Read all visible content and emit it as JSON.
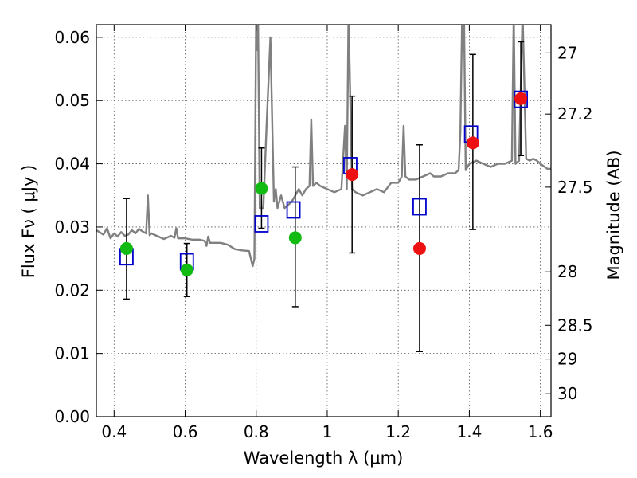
{
  "chart_data": {
    "type": "scatter",
    "xlabel": "Wavelength  λ (μm)",
    "ylabel_left": "Flux  Fν  ( μJy )",
    "ylabel_right": "Magnitude (AB)",
    "xlim": [
      0.35,
      1.63
    ],
    "ylim": [
      0.0,
      0.062
    ],
    "grid": true,
    "x_ticks": [
      0.4,
      0.6,
      0.8,
      1.0,
      1.2,
      1.4,
      1.6
    ],
    "x_tick_labels": [
      "0.4",
      "0.6",
      "0.8",
      "1",
      "1.2",
      "1.4",
      "1.6"
    ],
    "y_ticks": [
      0.0,
      0.01,
      0.02,
      0.03,
      0.04,
      0.05,
      0.06
    ],
    "y_tick_labels": [
      "0.00",
      "0.01",
      "0.02",
      "0.03",
      "0.04",
      "0.05",
      "0.06"
    ],
    "right_axis_magnitudes": [
      27,
      27.2,
      27.5,
      28,
      28.5,
      29,
      30
    ],
    "right_axis_labels": [
      "27",
      "27.2",
      "27.5",
      "28",
      "28.5",
      "29",
      "30"
    ],
    "colors": {
      "model_line": "#808080",
      "model_photometry": "#0000cc",
      "detections_green": "#11bb11",
      "detections_red": "#ee1111",
      "errorbar": "#000000",
      "grid": "#555555"
    },
    "series": [
      {
        "name": "model-spectrum",
        "kind": "line",
        "x": [
          0.35,
          0.37,
          0.38,
          0.39,
          0.4,
          0.41,
          0.42,
          0.43,
          0.44,
          0.45,
          0.46,
          0.47,
          0.48,
          0.49,
          0.495,
          0.5,
          0.505,
          0.52,
          0.54,
          0.56,
          0.57,
          0.575,
          0.58,
          0.6,
          0.62,
          0.64,
          0.655,
          0.66,
          0.665,
          0.67,
          0.7,
          0.72,
          0.74,
          0.76,
          0.78,
          0.79,
          0.795,
          0.8,
          0.802,
          0.805,
          0.81,
          0.82,
          0.83,
          0.84,
          0.85,
          0.855,
          0.86,
          0.87,
          0.88,
          0.89,
          0.9,
          0.91,
          0.92,
          0.93,
          0.94,
          0.95,
          0.955,
          0.96,
          0.97,
          0.98,
          1.0,
          1.02,
          1.04,
          1.05,
          1.055,
          1.06,
          1.07,
          1.08,
          1.1,
          1.12,
          1.14,
          1.16,
          1.18,
          1.2,
          1.21,
          1.215,
          1.22,
          1.23,
          1.25,
          1.27,
          1.29,
          1.3,
          1.32,
          1.34,
          1.36,
          1.37,
          1.375,
          1.38,
          1.385,
          1.39,
          1.4,
          1.42,
          1.44,
          1.46,
          1.48,
          1.5,
          1.52,
          1.525,
          1.53,
          1.54,
          1.55,
          1.56,
          1.57,
          1.58,
          1.59,
          1.6,
          1.62,
          1.63
        ],
        "y": [
          0.0295,
          0.0288,
          0.0298,
          0.0282,
          0.029,
          0.0285,
          0.0292,
          0.0286,
          0.0288,
          0.0295,
          0.029,
          0.0297,
          0.0293,
          0.029,
          0.035,
          0.0287,
          0.029,
          0.0286,
          0.0281,
          0.0286,
          0.0283,
          0.0298,
          0.0282,
          0.0282,
          0.028,
          0.028,
          0.0278,
          0.027,
          0.0285,
          0.0275,
          0.0275,
          0.0272,
          0.0265,
          0.0263,
          0.0262,
          0.0238,
          0.025,
          0.064,
          0.058,
          0.064,
          0.033,
          0.033,
          0.047,
          0.06,
          0.034,
          0.036,
          0.033,
          0.035,
          0.033,
          0.0335,
          0.034,
          0.035,
          0.036,
          0.035,
          0.036,
          0.0365,
          0.047,
          0.0365,
          0.037,
          0.0365,
          0.036,
          0.0355,
          0.036,
          0.046,
          0.036,
          0.064,
          0.036,
          0.0355,
          0.035,
          0.0355,
          0.036,
          0.0355,
          0.037,
          0.037,
          0.038,
          0.046,
          0.038,
          0.0375,
          0.0375,
          0.038,
          0.0385,
          0.038,
          0.038,
          0.0385,
          0.0385,
          0.039,
          0.045,
          0.064,
          0.064,
          0.039,
          0.04,
          0.0405,
          0.04,
          0.0395,
          0.04,
          0.04,
          0.0405,
          0.064,
          0.04,
          0.0405,
          0.064,
          0.0408,
          0.0405,
          0.0408,
          0.0405,
          0.04,
          0.0392,
          0.0392
        ]
      },
      {
        "name": "model-photometry",
        "kind": "open-square",
        "x": [
          0.435,
          0.605,
          0.815,
          0.905,
          1.065,
          1.26,
          1.405,
          1.545
        ],
        "y": [
          0.0253,
          0.0245,
          0.0305,
          0.0327,
          0.0397,
          0.0332,
          0.0447,
          0.0502
        ]
      },
      {
        "name": "observed-green",
        "kind": "filled-circle",
        "x": [
          0.435,
          0.605,
          0.815,
          0.91
        ],
        "y": [
          0.0266,
          0.0232,
          0.0361,
          0.0283
        ],
        "err_low": [
          0.008,
          0.0042,
          0.0063,
          0.0109
        ],
        "err_high": [
          0.0079,
          0.0042,
          0.0064,
          0.0112
        ]
      },
      {
        "name": "observed-red",
        "kind": "filled-circle",
        "x": [
          1.07,
          1.26,
          1.41,
          1.545
        ],
        "y": [
          0.0383,
          0.0266,
          0.0433,
          0.0503
        ],
        "err_low": [
          0.0124,
          0.0163,
          0.0137,
          0.009
        ],
        "err_high": [
          0.0124,
          0.0164,
          0.014,
          0.009
        ]
      }
    ]
  }
}
